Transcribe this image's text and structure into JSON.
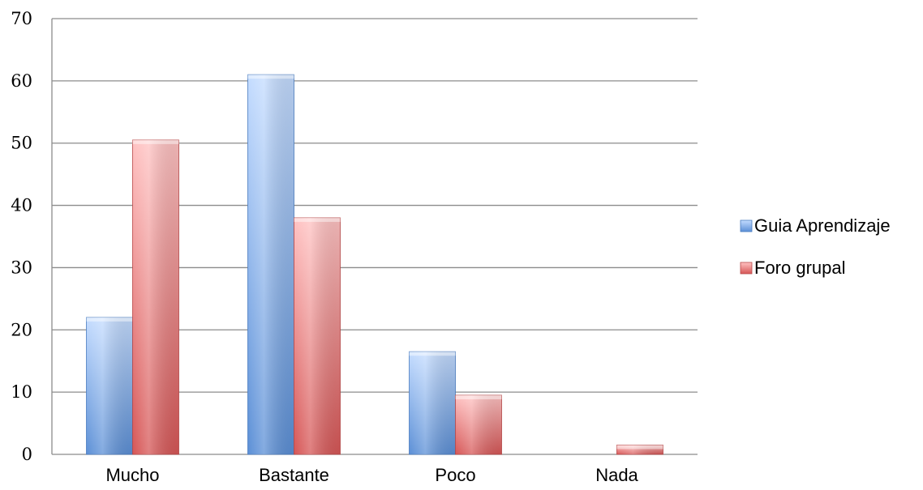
{
  "chart_data": {
    "type": "bar",
    "title": "",
    "xlabel": "",
    "ylabel": "",
    "categories": [
      "Mucho",
      "Bastante",
      "Poco",
      "Nada"
    ],
    "series": [
      {
        "name": "Guia Aprendizaje",
        "values": [
          22,
          61,
          16.5,
          0
        ],
        "color": "#6a9fe0"
      },
      {
        "name": "Foro grupal",
        "values": [
          50.5,
          38,
          9.5,
          1.5
        ],
        "color": "#e06666"
      }
    ],
    "ylim": [
      0,
      70
    ],
    "yticks": [
      "0",
      "10",
      "20",
      "30",
      "40",
      "50",
      "60",
      "70"
    ],
    "grid": true,
    "legend": "right"
  }
}
